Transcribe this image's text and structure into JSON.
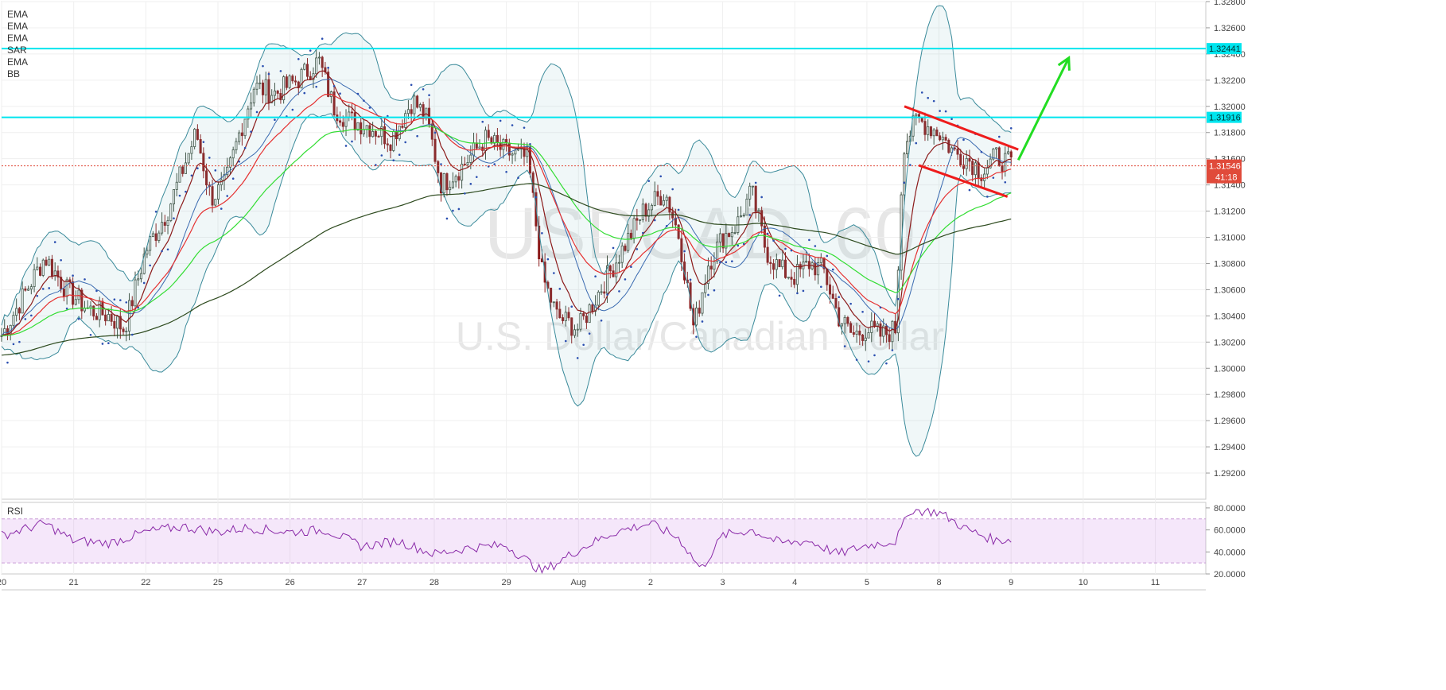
{
  "chart_data": {
    "type": "candlestick",
    "symbol": "USDCAD",
    "watermark": {
      "line1": "USDCAD, 60",
      "line2": "U.S. Dollar/Canadian Dollar"
    },
    "indicators": [
      "EMA",
      "EMA",
      "EMA",
      "SAR",
      "EMA",
      "BB"
    ],
    "price_axis": {
      "min": 1.29,
      "max": 1.328,
      "ticks": [
        "1.32800",
        "1.32600",
        "1.32400",
        "1.32200",
        "1.32000",
        "1.31800",
        "1.31600",
        "1.31400",
        "1.31200",
        "1.31000",
        "1.30800",
        "1.30600",
        "1.30400",
        "1.30200",
        "1.30000",
        "1.29800",
        "1.29600",
        "1.29400",
        "1.29200"
      ]
    },
    "time_axis": {
      "min_day": 0,
      "max_day": 16.7,
      "ticks": [
        {
          "day": 0,
          "label": "20"
        },
        {
          "day": 1,
          "label": "21"
        },
        {
          "day": 2,
          "label": "22"
        },
        {
          "day": 3,
          "label": "25"
        },
        {
          "day": 4,
          "label": "26"
        },
        {
          "day": 5,
          "label": "27"
        },
        {
          "day": 6,
          "label": "28"
        },
        {
          "day": 7,
          "label": "29"
        },
        {
          "day": 8,
          "label": "Aug"
        },
        {
          "day": 9,
          "label": "2"
        },
        {
          "day": 10,
          "label": "3"
        },
        {
          "day": 11,
          "label": "4"
        },
        {
          "day": 12,
          "label": "5"
        },
        {
          "day": 13,
          "label": "8"
        },
        {
          "day": 14,
          "label": "9"
        },
        {
          "day": 15,
          "label": "10"
        },
        {
          "day": 16,
          "label": "11"
        }
      ]
    },
    "horizontal_levels": [
      {
        "price": 1.32441,
        "label": "1.32441",
        "color": "#00e5ee"
      },
      {
        "price": 1.31916,
        "label": "1.31916",
        "color": "#00e5ee"
      }
    ],
    "current_price": {
      "price": 1.31546,
      "label": "1.31546",
      "countdown": "41:18",
      "color": "#e04a3a"
    },
    "close_path": [
      [
        0.0,
        1.3025
      ],
      [
        0.3,
        1.3055
      ],
      [
        0.6,
        1.3085
      ],
      [
        0.9,
        1.306
      ],
      [
        1.2,
        1.3045
      ],
      [
        1.5,
        1.304
      ],
      [
        1.7,
        1.303
      ],
      [
        2.0,
        1.309
      ],
      [
        2.3,
        1.312
      ],
      [
        2.5,
        1.315
      ],
      [
        2.7,
        1.318
      ],
      [
        2.9,
        1.313
      ],
      [
        3.1,
        1.314
      ],
      [
        3.3,
        1.318
      ],
      [
        3.5,
        1.3215
      ],
      [
        3.8,
        1.321
      ],
      [
        4.1,
        1.322
      ],
      [
        4.4,
        1.3235
      ],
      [
        4.6,
        1.32
      ],
      [
        4.8,
        1.319
      ],
      [
        5.1,
        1.3185
      ],
      [
        5.4,
        1.3175
      ],
      [
        5.7,
        1.3205
      ],
      [
        5.9,
        1.319
      ],
      [
        6.1,
        1.314
      ],
      [
        6.4,
        1.3155
      ],
      [
        6.7,
        1.3175
      ],
      [
        7.0,
        1.3165
      ],
      [
        7.3,
        1.316
      ],
      [
        7.5,
        1.307
      ],
      [
        7.7,
        1.304
      ],
      [
        8.0,
        1.303
      ],
      [
        8.3,
        1.306
      ],
      [
        8.6,
        1.309
      ],
      [
        8.9,
        1.312
      ],
      [
        9.2,
        1.3135
      ],
      [
        9.4,
        1.31
      ],
      [
        9.6,
        1.303
      ],
      [
        9.8,
        1.308
      ],
      [
        10.0,
        1.31
      ],
      [
        10.2,
        1.311
      ],
      [
        10.4,
        1.3135
      ],
      [
        10.6,
        1.309
      ],
      [
        10.8,
        1.3075
      ],
      [
        11.0,
        1.307
      ],
      [
        11.2,
        1.308
      ],
      [
        11.4,
        1.3075
      ],
      [
        11.6,
        1.304
      ],
      [
        11.8,
        1.3025
      ],
      [
        12.0,
        1.303
      ],
      [
        12.2,
        1.3025
      ],
      [
        12.4,
        1.303
      ],
      [
        12.5,
        1.317
      ],
      [
        12.7,
        1.319
      ],
      [
        13.0,
        1.318
      ],
      [
        13.2,
        1.3165
      ],
      [
        13.4,
        1.316
      ],
      [
        13.6,
        1.315
      ],
      [
        13.8,
        1.3162
      ],
      [
        14.0,
        1.3155
      ]
    ],
    "ema_series": [
      {
        "color": "#8b1a1a",
        "period": 10
      },
      {
        "color": "#e53030",
        "period": 30
      },
      {
        "color": "#33dd33",
        "period": 60
      },
      {
        "color": "#2d4a1e",
        "period": 180
      }
    ],
    "annotations": {
      "channel_upper": {
        "from": [
          12.52,
          1.32
        ],
        "to": [
          14.1,
          1.3167
        ],
        "color": "#ee1c1c"
      },
      "channel_lower": {
        "from": [
          12.72,
          1.3155
        ],
        "to": [
          13.95,
          1.3131
        ],
        "color": "#ee1c1c"
      },
      "arrow": {
        "from": [
          14.1,
          1.3159
        ],
        "to": [
          14.8,
          1.3237
        ],
        "color": "#22dd22"
      }
    },
    "rsi": {
      "label": "RSI",
      "min": 20,
      "max": 85,
      "upper_band": 70,
      "lower_band": 30,
      "ticks": [
        "80.0000",
        "60.0000",
        "40.0000",
        "20.0000"
      ],
      "values": [
        [
          0,
          55
        ],
        [
          0.6,
          66
        ],
        [
          1.0,
          50
        ],
        [
          1.5,
          48
        ],
        [
          2.0,
          58
        ],
        [
          2.5,
          63
        ],
        [
          3.0,
          58
        ],
        [
          3.4,
          62
        ],
        [
          4.0,
          58
        ],
        [
          4.5,
          60
        ],
        [
          5.0,
          45
        ],
        [
          5.5,
          50
        ],
        [
          6.0,
          38
        ],
        [
          6.5,
          44
        ],
        [
          7.0,
          46
        ],
        [
          7.5,
          22
        ],
        [
          8.0,
          42
        ],
        [
          8.5,
          58
        ],
        [
          9.0,
          66
        ],
        [
          9.4,
          52
        ],
        [
          9.7,
          24
        ],
        [
          10.0,
          55
        ],
        [
          10.4,
          60
        ],
        [
          10.8,
          48
        ],
        [
          11.2,
          50
        ],
        [
          11.6,
          38
        ],
        [
          12.0,
          46
        ],
        [
          12.4,
          50
        ],
        [
          12.6,
          78
        ],
        [
          13.0,
          76
        ],
        [
          13.4,
          60
        ],
        [
          13.8,
          50
        ],
        [
          14.0,
          52
        ]
      ]
    }
  }
}
